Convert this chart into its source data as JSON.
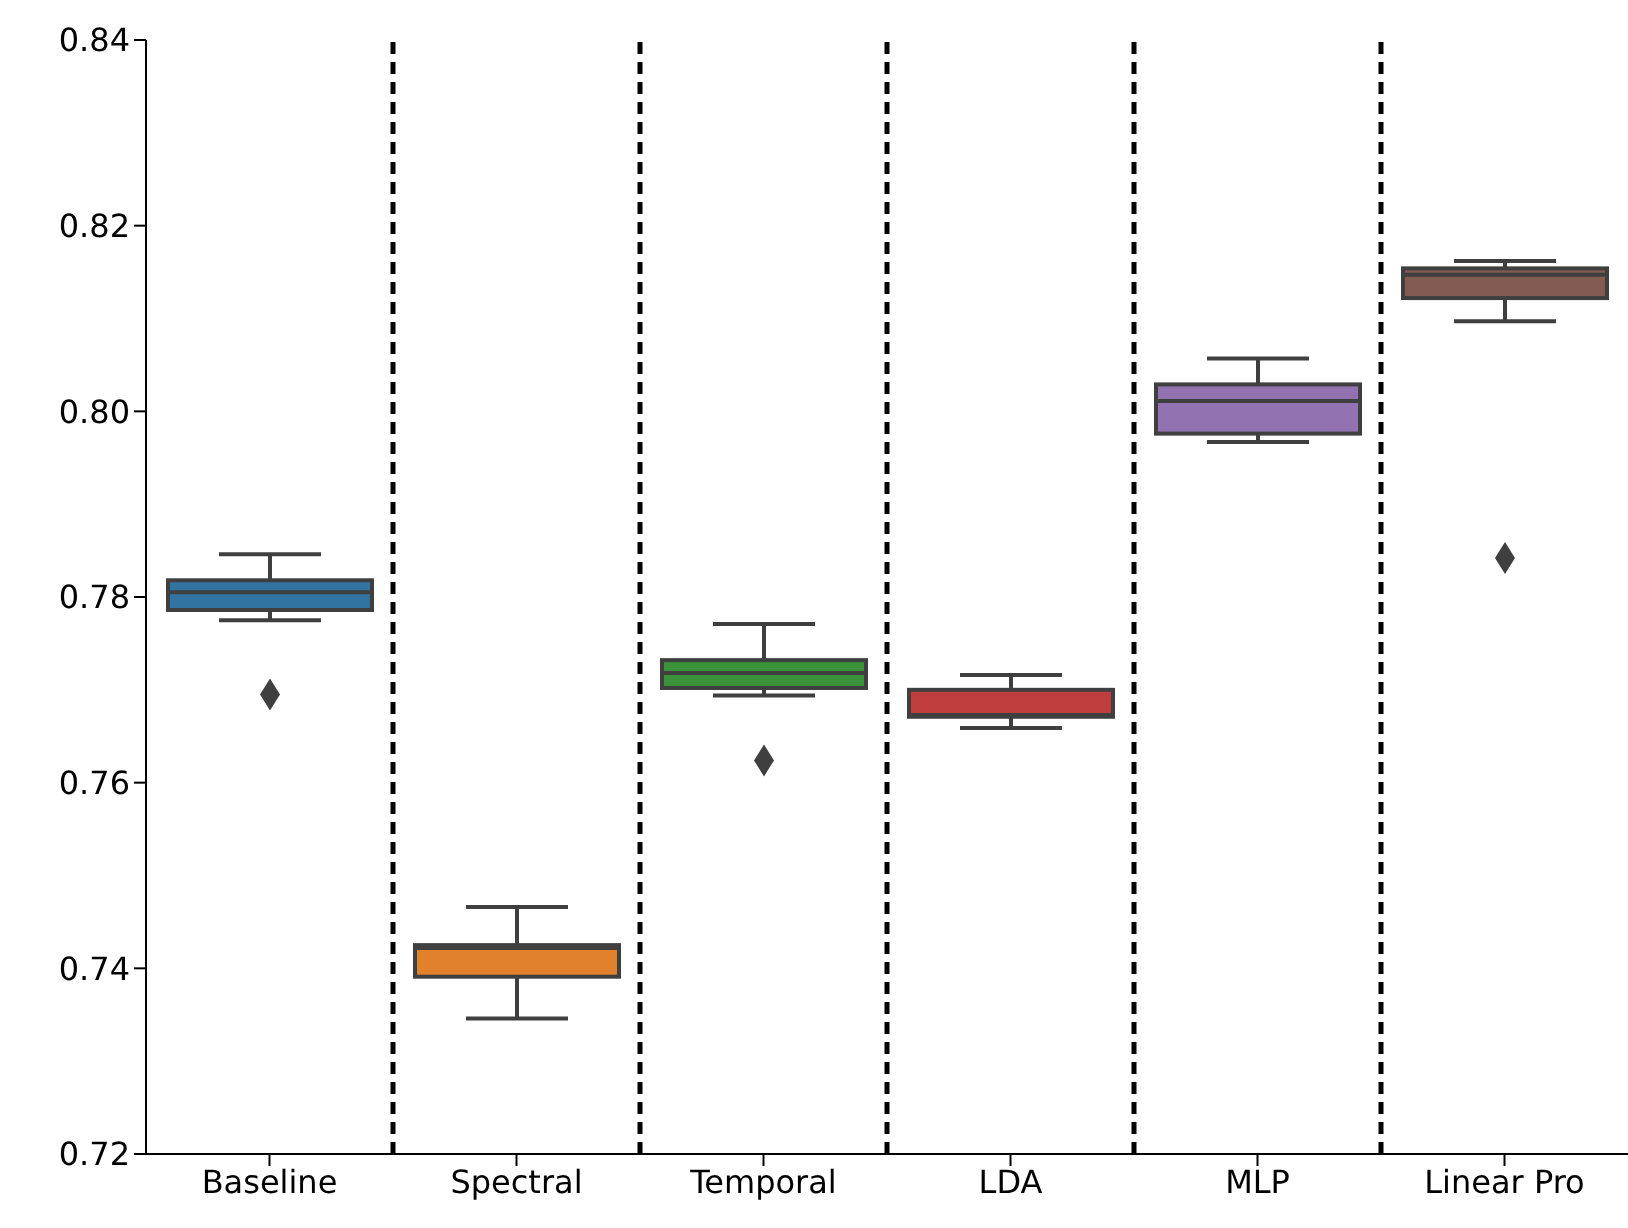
{
  "chart_data": {
    "type": "box",
    "categories": [
      "Baseline",
      "Spectral",
      "Temporal",
      "LDA",
      "MLP",
      "Linear Pro"
    ],
    "boxes": [
      {
        "low": 0.7775,
        "q1": 0.7786,
        "median": 0.7805,
        "q3": 0.7818,
        "high": 0.7846,
        "outliers": [
          0.7695
        ]
      },
      {
        "low": 0.7346,
        "q1": 0.7391,
        "median": 0.7422,
        "q3": 0.7425,
        "high": 0.7466
      },
      {
        "low": 0.7694,
        "q1": 0.7702,
        "median": 0.7718,
        "q3": 0.7732,
        "high": 0.7771,
        "outliers": [
          0.7624
        ]
      },
      {
        "low": 0.7659,
        "q1": 0.7671,
        "median": 0.7673,
        "q3": 0.77,
        "high": 0.7716
      },
      {
        "low": 0.7967,
        "q1": 0.7976,
        "median": 0.8011,
        "q3": 0.8029,
        "high": 0.8057
      },
      {
        "low": 0.8097,
        "q1": 0.8122,
        "median": 0.8147,
        "q3": 0.8154,
        "high": 0.8162,
        "outliers": [
          0.7842
        ]
      }
    ],
    "colors": [
      "#3274a1",
      "#e1812c",
      "#3a923a",
      "#c03d3e",
      "#9372b2",
      "#845b53"
    ],
    "ylim": [
      0.72,
      0.84
    ],
    "yticks": [
      0.72,
      0.74,
      0.76,
      0.78,
      {
        "value": 0.8,
        "label": "0.80"
      },
      0.82,
      0.84
    ]
  }
}
